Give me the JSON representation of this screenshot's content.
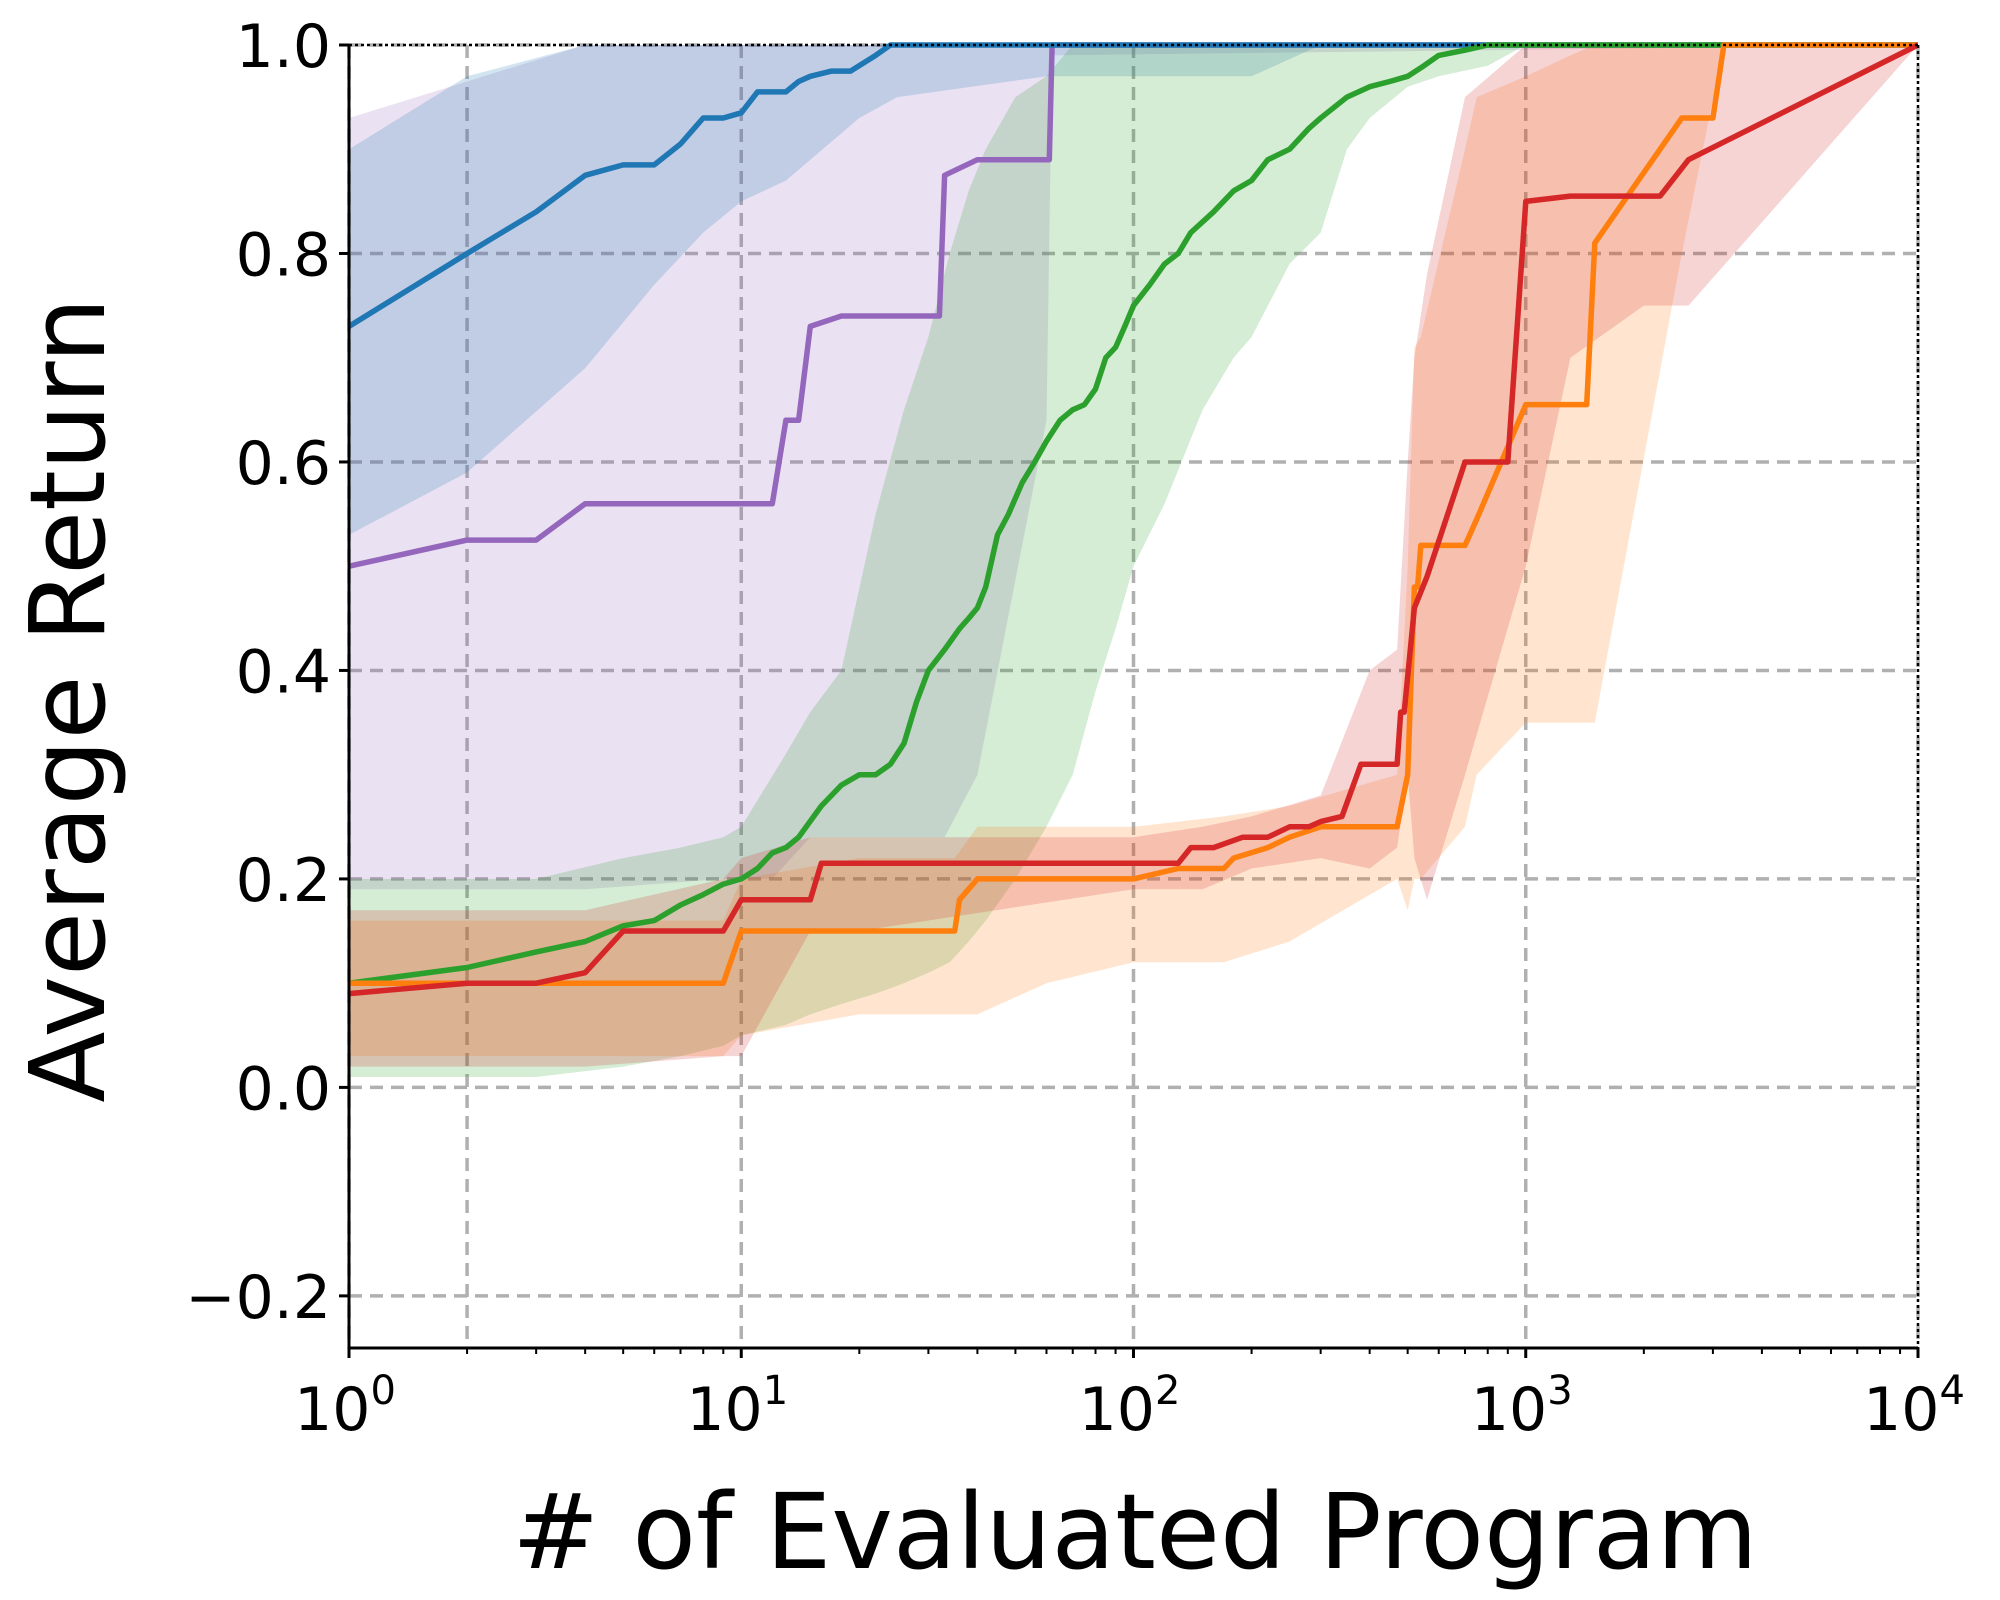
{
  "chart_data": {
    "type": "line",
    "xlabel": "# of Evaluated Program",
    "ylabel": "Average Return",
    "xscale": "log",
    "xlim": [
      1,
      10000
    ],
    "ylim": [
      -0.25,
      1.0
    ],
    "grid": true,
    "y_ticks": [
      {
        "value": -0.2,
        "label": "−0.2"
      },
      {
        "value": 0.0,
        "label": "0.0"
      },
      {
        "value": 0.2,
        "label": "0.2"
      },
      {
        "value": 0.4,
        "label": "0.4"
      },
      {
        "value": 0.6,
        "label": "0.6"
      },
      {
        "value": 0.8,
        "label": "0.8"
      },
      {
        "value": 1.0,
        "label": "1.0"
      }
    ],
    "x_ticks": [
      {
        "value": 1,
        "base": "10",
        "exp": "0"
      },
      {
        "value": 10,
        "base": "10",
        "exp": "1"
      },
      {
        "value": 100,
        "base": "10",
        "exp": "2"
      },
      {
        "value": 1000,
        "base": "10",
        "exp": "3"
      },
      {
        "value": 10000,
        "base": "10",
        "exp": "4"
      }
    ],
    "series": [
      {
        "name": "purple",
        "color": "#9467bd",
        "x": [
          1,
          2,
          3,
          4,
          6,
          9,
          12,
          13,
          14,
          15,
          18,
          32,
          33,
          40,
          61,
          62,
          10000
        ],
        "y": [
          0.5,
          0.525,
          0.525,
          0.56,
          0.56,
          0.56,
          0.56,
          0.64,
          0.64,
          0.73,
          0.74,
          0.74,
          0.875,
          0.89,
          0.89,
          1.0,
          1.0
        ],
        "band_x": [
          1,
          4,
          9,
          12,
          15,
          20,
          33,
          40,
          60,
          62,
          10000
        ],
        "band_lo": [
          0.19,
          0.19,
          0.2,
          0.2,
          0.24,
          0.24,
          0.24,
          0.3,
          0.64,
          0.99,
          1.0
        ],
        "band_hi": [
          0.93,
          1.0,
          1.0,
          1.0,
          1.0,
          1.0,
          1.0,
          1.0,
          1.0,
          1.0,
          1.0
        ]
      },
      {
        "name": "blue",
        "color": "#1f77b4",
        "x": [
          1,
          2,
          3,
          4,
          5,
          6,
          7,
          8,
          9,
          10,
          11,
          13,
          14,
          15,
          17,
          19,
          22,
          24,
          26,
          200,
          10000
        ],
        "y": [
          0.73,
          0.8,
          0.84,
          0.875,
          0.885,
          0.885,
          0.905,
          0.93,
          0.93,
          0.935,
          0.955,
          0.955,
          0.965,
          0.97,
          0.975,
          0.975,
          0.99,
          1.0,
          1.0,
          1.0,
          1.0
        ],
        "band_x": [
          1,
          2,
          4,
          6,
          8,
          10,
          13,
          15,
          20,
          25,
          60,
          100,
          200,
          300,
          10000
        ],
        "band_lo": [
          0.53,
          0.59,
          0.69,
          0.77,
          0.82,
          0.85,
          0.87,
          0.89,
          0.93,
          0.95,
          0.97,
          0.97,
          0.97,
          1.0,
          1.0
        ],
        "band_hi": [
          0.9,
          0.97,
          1.0,
          1.0,
          1.0,
          1.0,
          1.0,
          1.0,
          1.0,
          1.0,
          1.0,
          1.0,
          1.0,
          1.0,
          1.0
        ]
      },
      {
        "name": "green",
        "color": "#2ca02c",
        "x": [
          1,
          2,
          3,
          4,
          5,
          6,
          7,
          8,
          9,
          10,
          11,
          12,
          13,
          14,
          16,
          18,
          20,
          22,
          24,
          26,
          28,
          30,
          33,
          36,
          38,
          40,
          42,
          45,
          48,
          52,
          56,
          60,
          65,
          70,
          75,
          80,
          85,
          90,
          95,
          100,
          110,
          120,
          130,
          140,
          160,
          180,
          200,
          220,
          250,
          280,
          300,
          350,
          400,
          450,
          500,
          550,
          600,
          700,
          800,
          10000
        ],
        "y": [
          0.1,
          0.115,
          0.13,
          0.14,
          0.155,
          0.16,
          0.175,
          0.185,
          0.195,
          0.2,
          0.21,
          0.225,
          0.23,
          0.24,
          0.27,
          0.29,
          0.3,
          0.3,
          0.31,
          0.33,
          0.37,
          0.4,
          0.42,
          0.44,
          0.45,
          0.46,
          0.48,
          0.53,
          0.55,
          0.58,
          0.6,
          0.62,
          0.64,
          0.65,
          0.655,
          0.67,
          0.7,
          0.71,
          0.73,
          0.75,
          0.77,
          0.79,
          0.8,
          0.82,
          0.84,
          0.86,
          0.87,
          0.89,
          0.9,
          0.92,
          0.93,
          0.95,
          0.96,
          0.965,
          0.97,
          0.98,
          0.99,
          0.995,
          1.0,
          1.0
        ],
        "band_x": [
          1,
          3,
          5,
          7,
          9,
          10,
          13,
          15,
          18,
          22,
          26,
          30,
          34,
          38,
          42,
          50,
          60,
          70,
          80,
          90,
          100,
          120,
          150,
          180,
          200,
          250,
          300,
          350,
          400,
          500,
          600,
          800,
          1000,
          10000
        ],
        "band_lo": [
          0.01,
          0.01,
          0.02,
          0.03,
          0.04,
          0.05,
          0.06,
          0.07,
          0.08,
          0.09,
          0.1,
          0.11,
          0.12,
          0.14,
          0.16,
          0.2,
          0.25,
          0.3,
          0.38,
          0.44,
          0.5,
          0.56,
          0.65,
          0.7,
          0.72,
          0.79,
          0.82,
          0.9,
          0.93,
          0.96,
          0.97,
          0.98,
          1.0,
          1.0
        ],
        "band_hi": [
          0.2,
          0.2,
          0.22,
          0.23,
          0.24,
          0.25,
          0.32,
          0.36,
          0.4,
          0.55,
          0.65,
          0.72,
          0.8,
          0.86,
          0.9,
          0.95,
          0.97,
          1.0,
          1.0,
          1.0,
          1.0,
          1.0,
          1.0,
          1.0,
          1.0,
          1.0,
          1.0,
          1.0,
          1.0,
          1.0,
          1.0,
          1.0,
          1.0,
          1.0
        ]
      },
      {
        "name": "orange",
        "color": "#ff7f0e",
        "x": [
          1,
          9,
          10,
          20,
          35,
          36,
          40,
          60,
          100,
          130,
          170,
          180,
          220,
          250,
          300,
          470,
          500,
          520,
          530,
          540,
          620,
          700,
          750,
          1000,
          1300,
          1430,
          1500,
          2500,
          3000,
          3200,
          10000
        ],
        "y": [
          0.1,
          0.1,
          0.15,
          0.15,
          0.15,
          0.18,
          0.2,
          0.2,
          0.2,
          0.21,
          0.21,
          0.22,
          0.23,
          0.24,
          0.25,
          0.25,
          0.3,
          0.48,
          0.48,
          0.52,
          0.52,
          0.52,
          0.545,
          0.655,
          0.655,
          0.655,
          0.81,
          0.93,
          0.93,
          1.0,
          1.0
        ],
        "band_x": [
          1,
          9,
          10,
          20,
          35,
          40,
          60,
          100,
          170,
          250,
          470,
          500,
          520,
          540,
          700,
          750,
          1000,
          1300,
          1500,
          2500,
          3200,
          10000
        ],
        "band_lo": [
          0.03,
          0.03,
          0.05,
          0.07,
          0.07,
          0.07,
          0.1,
          0.12,
          0.12,
          0.14,
          0.2,
          0.17,
          0.2,
          0.2,
          0.25,
          0.3,
          0.35,
          0.35,
          0.35,
          0.8,
          1.0,
          1.0
        ],
        "band_hi": [
          0.16,
          0.16,
          0.2,
          0.22,
          0.22,
          0.25,
          0.25,
          0.25,
          0.26,
          0.27,
          0.3,
          0.5,
          0.71,
          0.72,
          0.9,
          0.95,
          0.97,
          0.99,
          1.0,
          1.0,
          1.0,
          1.0
        ]
      },
      {
        "name": "red",
        "color": "#d62728",
        "x": [
          1,
          2,
          3,
          4,
          5,
          6,
          9,
          10,
          12,
          15,
          16,
          20,
          100,
          130,
          140,
          160,
          190,
          220,
          250,
          280,
          300,
          340,
          380,
          400,
          470,
          480,
          490,
          520,
          560,
          700,
          900,
          1000,
          1300,
          2000,
          2200,
          2600,
          10000
        ],
        "y": [
          0.09,
          0.1,
          0.1,
          0.11,
          0.15,
          0.15,
          0.15,
          0.18,
          0.18,
          0.18,
          0.215,
          0.215,
          0.215,
          0.215,
          0.23,
          0.23,
          0.24,
          0.24,
          0.25,
          0.25,
          0.255,
          0.26,
          0.31,
          0.31,
          0.31,
          0.36,
          0.36,
          0.46,
          0.49,
          0.6,
          0.6,
          0.85,
          0.855,
          0.855,
          0.855,
          0.89,
          1.0
        ],
        "band_x": [
          1,
          4,
          9,
          10,
          15,
          20,
          100,
          150,
          200,
          300,
          400,
          470,
          500,
          520,
          560,
          700,
          1000,
          1300,
          2000,
          2600,
          10000
        ],
        "band_lo": [
          0.02,
          0.02,
          0.03,
          0.03,
          0.15,
          0.15,
          0.19,
          0.19,
          0.21,
          0.22,
          0.21,
          0.23,
          0.3,
          0.22,
          0.18,
          0.3,
          0.5,
          0.7,
          0.75,
          0.75,
          1.0
        ],
        "band_hi": [
          0.17,
          0.17,
          0.2,
          0.22,
          0.24,
          0.24,
          0.24,
          0.25,
          0.26,
          0.28,
          0.4,
          0.42,
          0.6,
          0.7,
          0.78,
          0.95,
          1.0,
          1.0,
          1.0,
          1.0,
          1.0
        ]
      }
    ]
  }
}
